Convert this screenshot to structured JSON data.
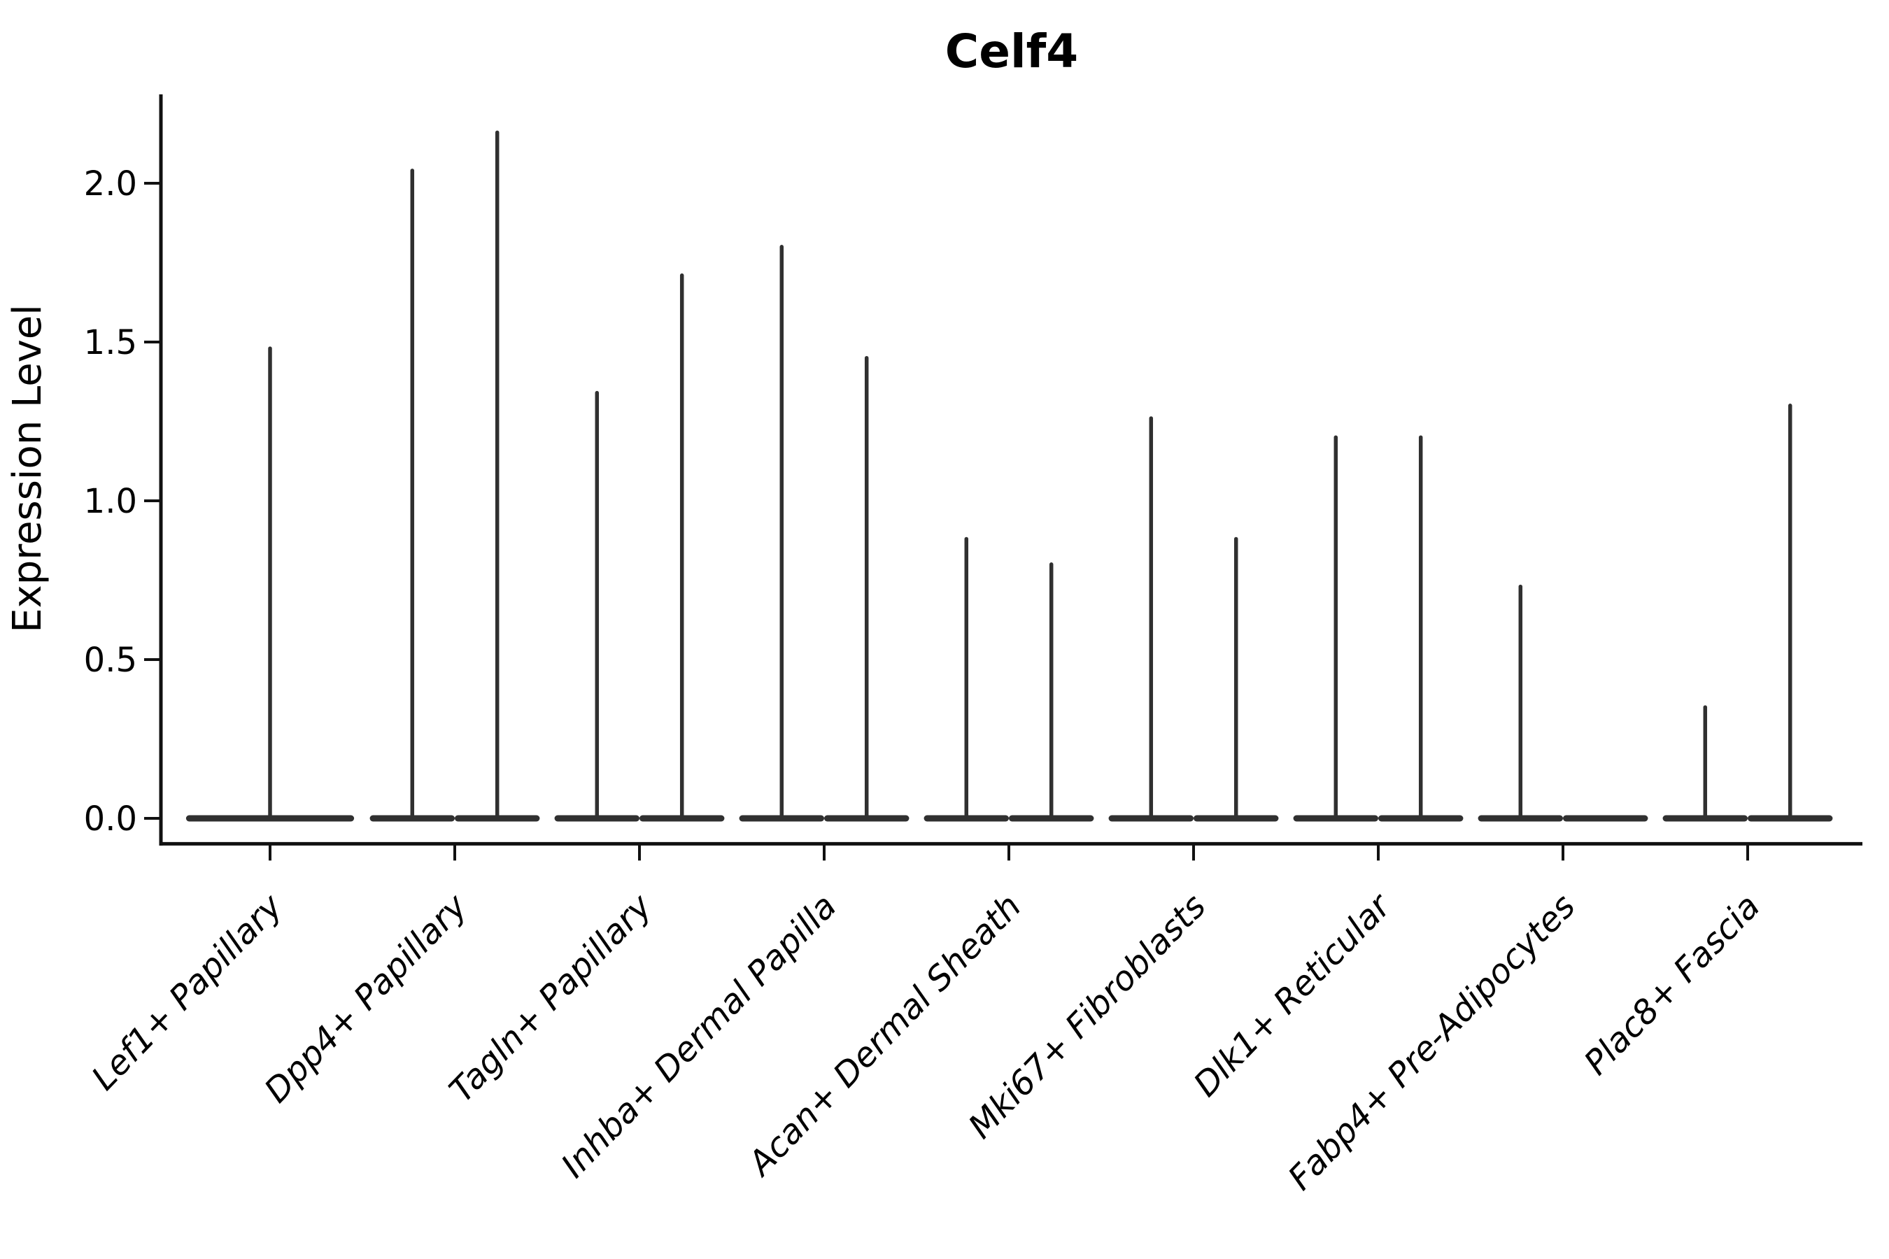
{
  "figure": {
    "background": "#ffffff"
  },
  "chart_data": {
    "type": "violin",
    "title": "Celf4",
    "xlabel": "",
    "ylabel": "Expression Level",
    "ylim": [
      -0.08,
      2.28
    ],
    "grid": false,
    "legend": "none",
    "violin_color": "#303030",
    "axis_color": "#111111",
    "text_color": "#000000",
    "yticks": [
      {
        "value": 0.0,
        "label": "0.0"
      },
      {
        "value": 0.5,
        "label": "0.5"
      },
      {
        "value": 1.0,
        "label": "1.0"
      },
      {
        "value": 1.5,
        "label": "1.5"
      },
      {
        "value": 2.0,
        "label": "2.0"
      }
    ],
    "categories": [
      "Lef1+ Papillary",
      "Dpp4+ Papillary",
      "Tagln+ Papillary",
      "Inhba+ Dermal Papilla",
      "Acan+ Dermal Sheath",
      "Mki67+ Fibroblasts",
      "Dlk1+ Reticular",
      "Fabp4+ Pre-Adipocytes",
      "Plac8+ Fascia"
    ],
    "series": [
      {
        "category": "Lef1+ Papillary",
        "violins": [
          {
            "offset": 0.0,
            "width": 0.91,
            "max_expression": 1.48
          }
        ]
      },
      {
        "category": "Dpp4+ Papillary",
        "violins": [
          {
            "offset": -0.23,
            "width": 0.46,
            "max_expression": 2.04
          },
          {
            "offset": 0.23,
            "width": 0.46,
            "max_expression": 2.16
          }
        ]
      },
      {
        "category": "Tagln+ Papillary",
        "violins": [
          {
            "offset": -0.23,
            "width": 0.46,
            "max_expression": 1.34
          },
          {
            "offset": 0.23,
            "width": 0.46,
            "max_expression": 1.71
          }
        ]
      },
      {
        "category": "Inhba+ Dermal Papilla",
        "violins": [
          {
            "offset": -0.23,
            "width": 0.46,
            "max_expression": 1.8
          },
          {
            "offset": 0.23,
            "width": 0.46,
            "max_expression": 1.45
          }
        ]
      },
      {
        "category": "Acan+ Dermal Sheath",
        "violins": [
          {
            "offset": -0.23,
            "width": 0.46,
            "max_expression": 0.88
          },
          {
            "offset": 0.23,
            "width": 0.46,
            "max_expression": 0.8
          }
        ]
      },
      {
        "category": "Mki67+ Fibroblasts",
        "violins": [
          {
            "offset": -0.23,
            "width": 0.46,
            "max_expression": 1.26
          },
          {
            "offset": 0.23,
            "width": 0.46,
            "max_expression": 0.88
          }
        ]
      },
      {
        "category": "Dlk1+ Reticular",
        "violins": [
          {
            "offset": -0.23,
            "width": 0.46,
            "max_expression": 1.2
          },
          {
            "offset": 0.23,
            "width": 0.46,
            "max_expression": 1.2
          }
        ]
      },
      {
        "category": "Fabp4+ Pre-Adipocytes",
        "violins": [
          {
            "offset": -0.23,
            "width": 0.46,
            "max_expression": 0.73
          },
          {
            "offset": 0.23,
            "width": 0.46,
            "max_expression": 0.0
          }
        ]
      },
      {
        "category": "Plac8+ Fascia",
        "violins": [
          {
            "offset": -0.23,
            "width": 0.46,
            "max_expression": 0.35
          },
          {
            "offset": 0.23,
            "width": 0.46,
            "max_expression": 1.3
          }
        ]
      }
    ]
  }
}
